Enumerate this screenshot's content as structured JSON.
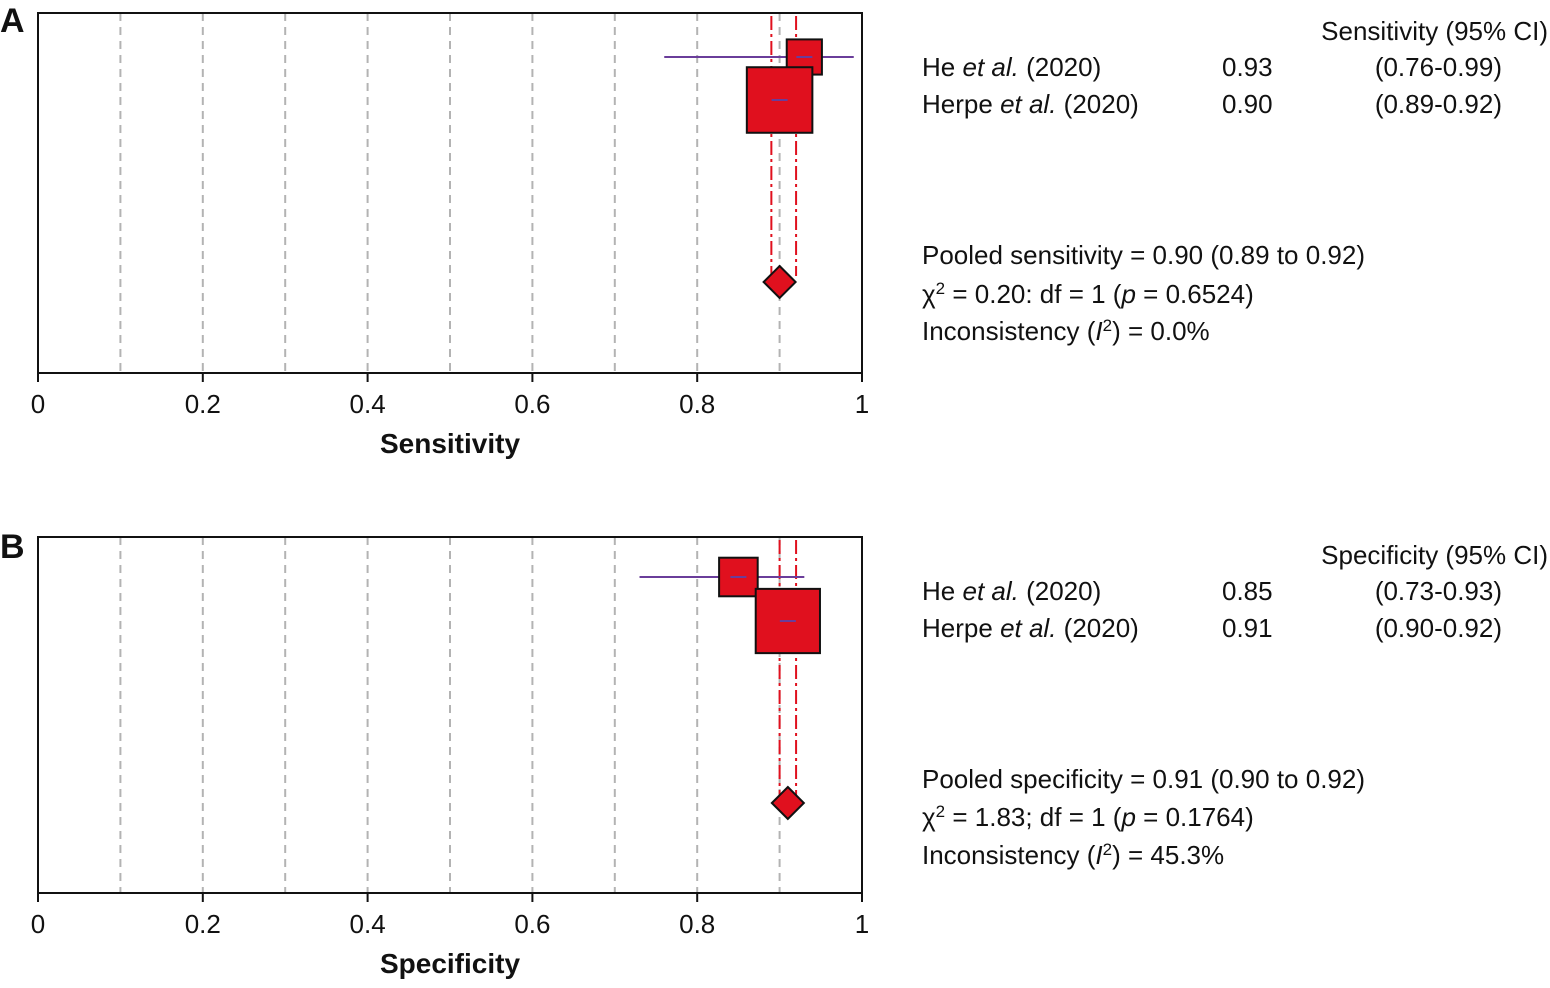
{
  "chart_data": [
    {
      "type": "forest",
      "panel_label": "A",
      "xlabel": "Sensitivity",
      "xlim": [
        0,
        1
      ],
      "x_ticks": [
        "0",
        "0.2",
        "0.4",
        "0.6",
        "0.8",
        "1"
      ],
      "x_tick_values": [
        0,
        0.2,
        0.4,
        0.6,
        0.8,
        1
      ],
      "grid": true,
      "column_header": "Sensitivity (95% CI)",
      "studies": [
        {
          "name": "He",
          "suffix": "et al.",
          "year": "(2020)",
          "estimate_text": "0.93",
          "ci_text": "(0.76-0.99)",
          "estimate": 0.93,
          "ci_low": 0.76,
          "ci_high": 0.99,
          "weight": 0.1
        },
        {
          "name": "Herpe",
          "suffix": "et al.",
          "year": "(2020)",
          "estimate_text": "0.90",
          "ci_text": "(0.89-0.92)",
          "estimate": 0.9,
          "ci_low": 0.89,
          "ci_high": 0.92,
          "weight": 0.9
        }
      ],
      "pooled": {
        "estimate": 0.9,
        "ci_low": 0.89,
        "ci_high": 0.92
      },
      "pooled_lines": {
        "pooled_text": "Pooled sensitivity = 0.90 (0.89 to 0.92)",
        "chi_symbol": "χ",
        "chi_rest": " = 0.20: df = 1 (",
        "p_symbol": "p",
        "p_rest": " = 0.6524)",
        "inconsistency_prefix": "Inconsistency (",
        "i_symbol": "I",
        "inconsistency_rest": ") = 0.0%"
      }
    },
    {
      "type": "forest",
      "panel_label": "B",
      "xlabel": "Specificity",
      "xlim": [
        0,
        1
      ],
      "x_ticks": [
        "0",
        "0.2",
        "0.4",
        "0.6",
        "0.8",
        "1"
      ],
      "x_tick_values": [
        0,
        0.2,
        0.4,
        0.6,
        0.8,
        1
      ],
      "grid": true,
      "column_header": "Specificity (95% CI)",
      "studies": [
        {
          "name": "He",
          "suffix": "et al.",
          "year": "(2020)",
          "estimate_text": "0.85",
          "ci_text": "(0.73-0.93)",
          "estimate": 0.85,
          "ci_low": 0.73,
          "ci_high": 0.93,
          "weight": 0.15
        },
        {
          "name": "Herpe",
          "suffix": "et al.",
          "year": "(2020)",
          "estimate_text": "0.91",
          "ci_text": "(0.90-0.92)",
          "estimate": 0.91,
          "ci_low": 0.9,
          "ci_high": 0.92,
          "weight": 0.85
        }
      ],
      "pooled": {
        "estimate": 0.91,
        "ci_low": 0.9,
        "ci_high": 0.92
      },
      "pooled_lines": {
        "pooled_text": "Pooled specificity = 0.91 (0.90 to 0.92)",
        "chi_symbol": "χ",
        "chi_rest": " = 1.83; df = 1 (",
        "p_symbol": "p",
        "p_rest": " = 0.1764)",
        "inconsistency_prefix": "Inconsistency (",
        "i_symbol": "I",
        "inconsistency_rest": ") = 45.3%"
      }
    }
  ],
  "colors": {
    "box_fill": "#e0101e",
    "box_stroke": "#111111",
    "ci_line": "#6a3d9a",
    "pooled_ci_line": "#e0101e",
    "grid": "#b3b3b3",
    "axis": "#111111"
  }
}
